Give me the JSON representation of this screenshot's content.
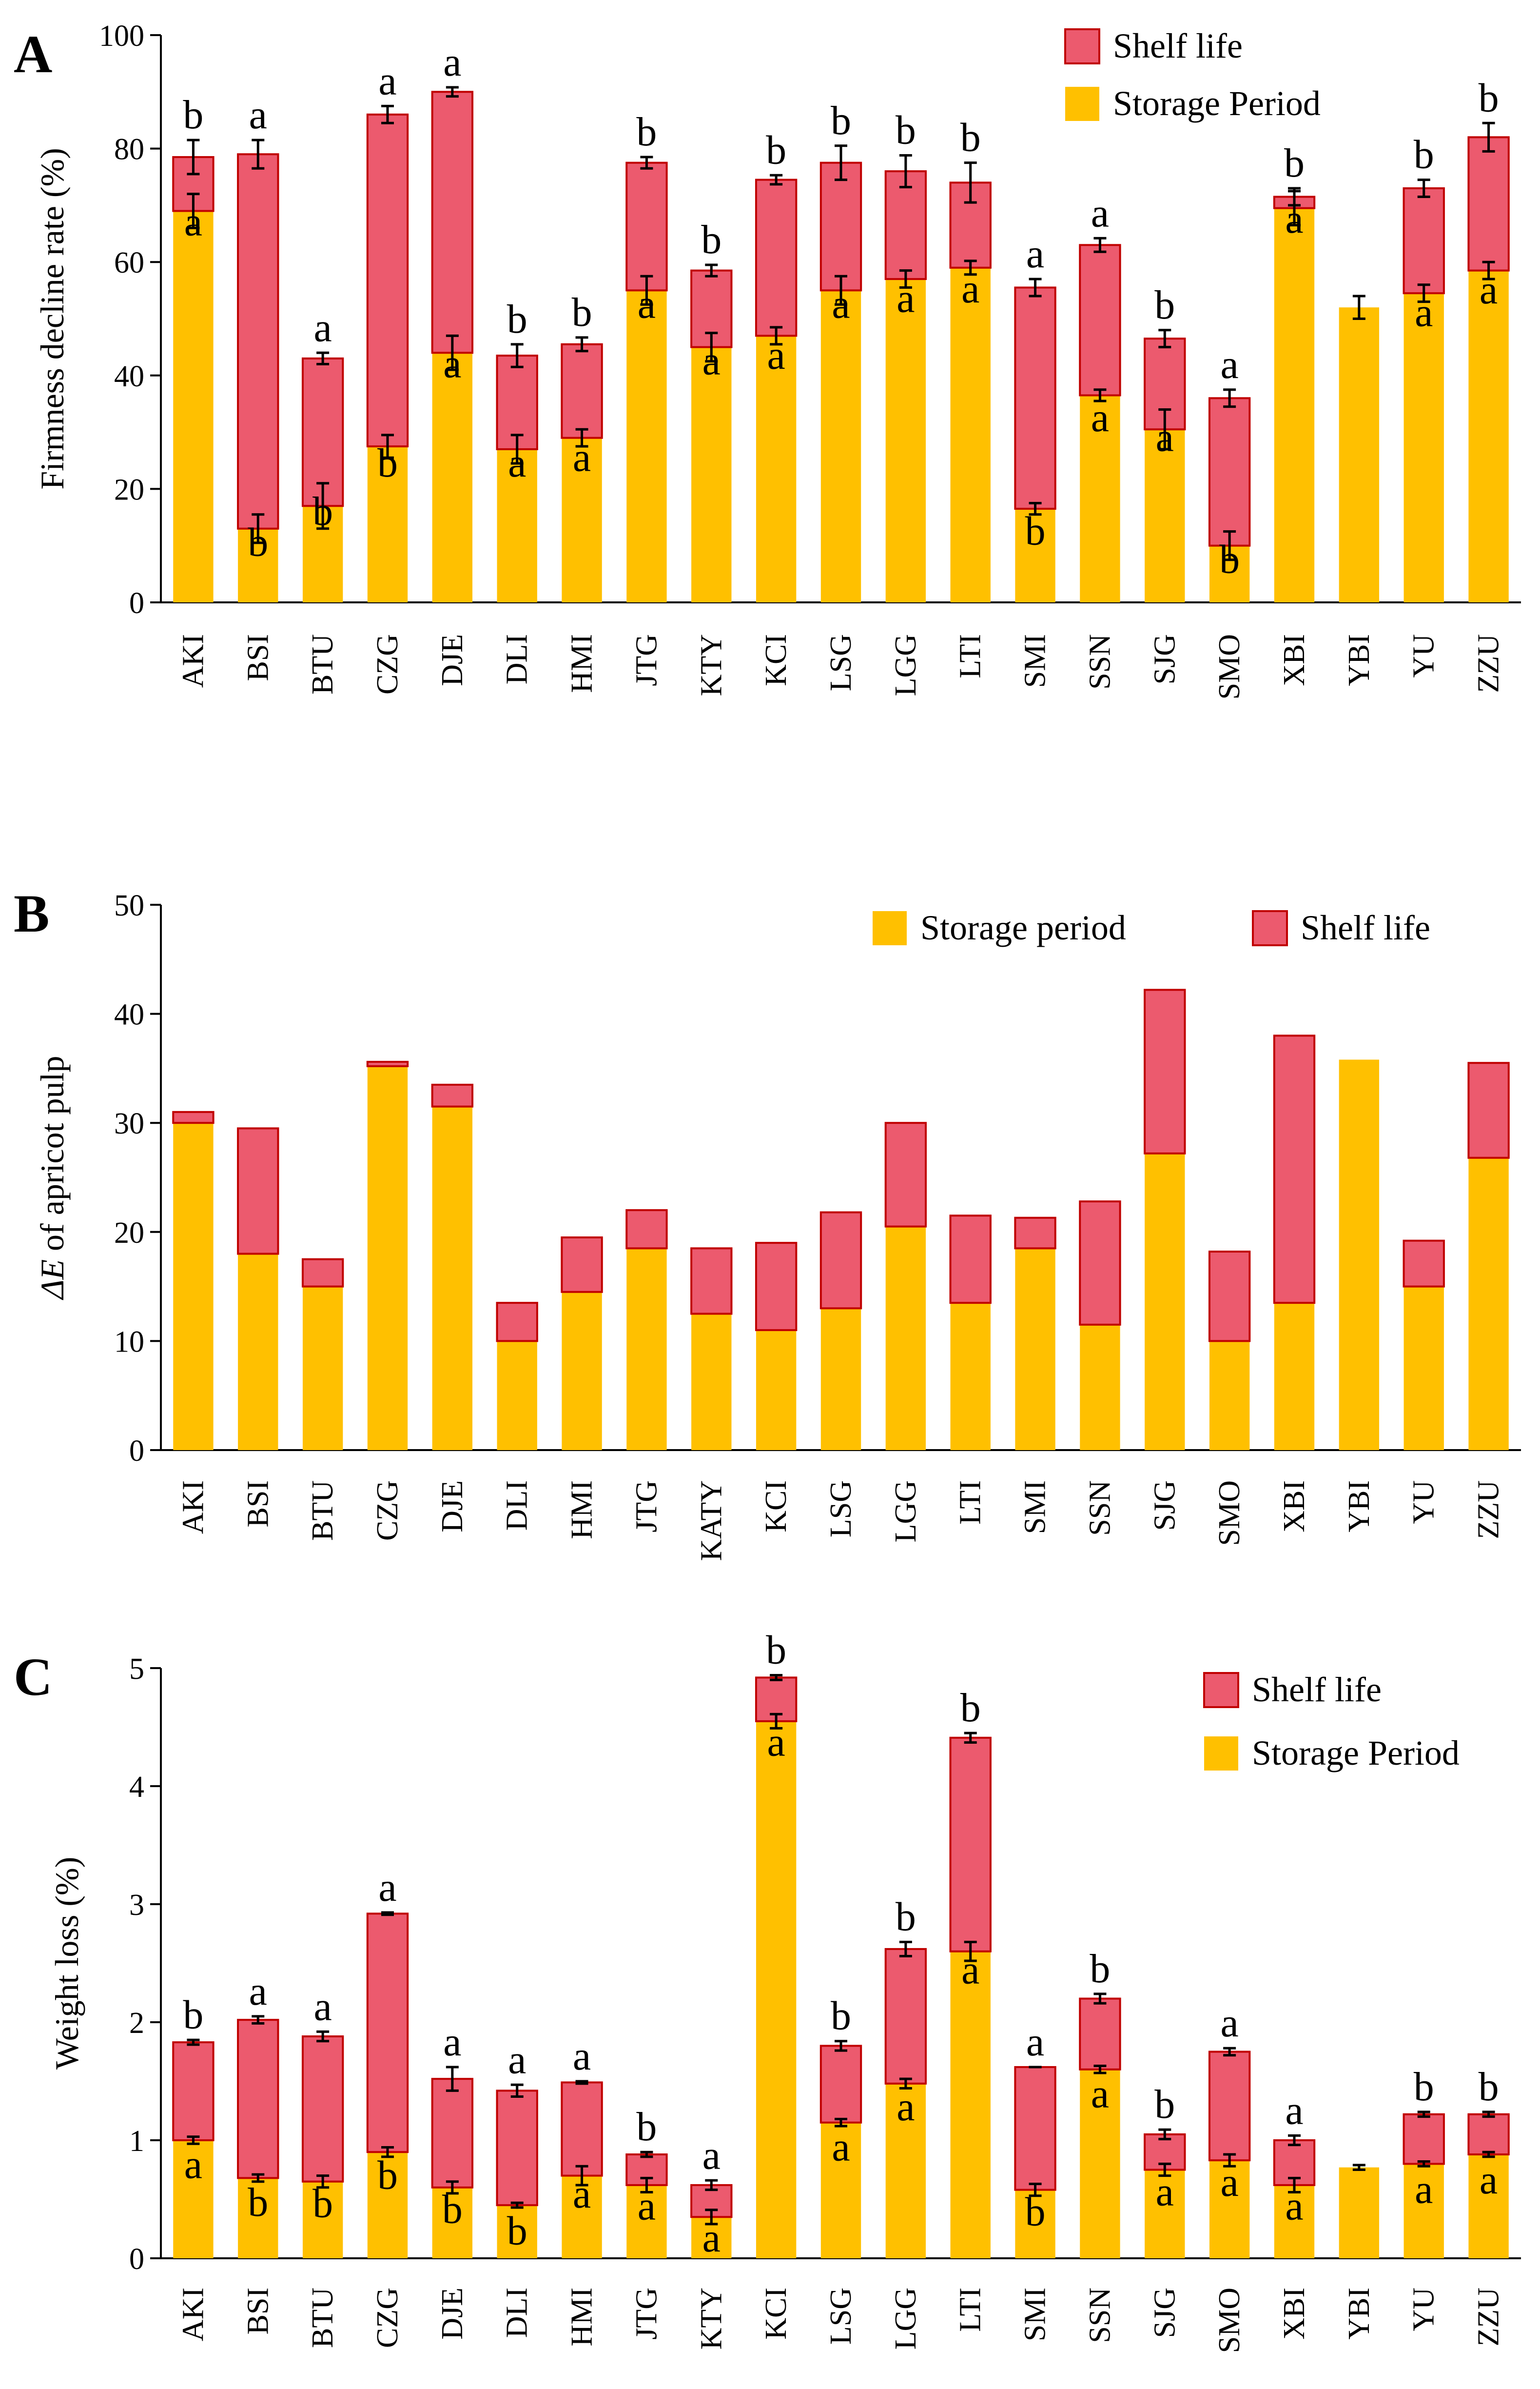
{
  "colors": {
    "storage": "#FFC000",
    "shelf": "#EC5A6E",
    "shelf_edge": "#C00000",
    "error": "#000000"
  },
  "chart_data": [
    {
      "type": "bar",
      "panel": "A",
      "stacked": true,
      "ylabel": "Firmness decline rate (%)",
      "ylim": [
        0,
        100
      ],
      "yticks": [
        0,
        20,
        40,
        60,
        80,
        100
      ],
      "legend": [
        "Shelf life",
        "Storage Period"
      ],
      "legend_order": [
        "shelf",
        "storage"
      ],
      "categories": [
        "AKI",
        "BSI",
        "BTU",
        "CZG",
        "DJE",
        "DLI",
        "HMI",
        "JTG",
        "KTY",
        "KCI",
        "LSG",
        "LGG",
        "LTI",
        "SMI",
        "SSN",
        "SJG",
        "SMO",
        "XBI",
        "YBI",
        "YU",
        "ZZU"
      ],
      "storage": [
        69,
        13,
        17,
        27.5,
        44,
        27,
        29,
        55,
        45,
        47,
        55,
        57,
        59,
        16.5,
        36.5,
        30.5,
        10,
        69.5,
        52,
        54.5,
        58.5
      ],
      "total": [
        78.5,
        79,
        43,
        86,
        90,
        43.5,
        45.5,
        77.5,
        58.5,
        74.5,
        77.5,
        76,
        74,
        55.5,
        63,
        46.5,
        36,
        71.5,
        null,
        73,
        82
      ],
      "storage_err": [
        3,
        2.5,
        4,
        2,
        3,
        2.5,
        1.5,
        2.5,
        2.5,
        1.5,
        2.5,
        1.5,
        1.2,
        1,
        1,
        3.5,
        2.5,
        3,
        2,
        1.5,
        1.5
      ],
      "total_err": [
        3,
        2.5,
        1,
        1.5,
        0.8,
        2,
        1.2,
        1,
        1,
        0.8,
        3,
        2.8,
        3.5,
        1.5,
        1.2,
        1.5,
        1.5,
        1.5,
        null,
        1.5,
        2.5
      ],
      "storage_letter": [
        "a",
        "b",
        "b",
        "b",
        "a",
        "a",
        "a",
        "a",
        "a",
        "a",
        "a",
        "a",
        "a",
        "b",
        "a",
        "a",
        "b",
        "a",
        "",
        "a",
        "a"
      ],
      "total_letter": [
        "b",
        "a",
        "a",
        "a",
        "a",
        "b",
        "b",
        "b",
        "b",
        "b",
        "b",
        "b",
        "b",
        "a",
        "a",
        "b",
        "a",
        "b",
        "",
        "b",
        "b"
      ]
    },
    {
      "type": "bar",
      "panel": "B",
      "stacked": true,
      "ylabel_prefix": "ΔE",
      "ylabel_suffix": " of apricot pulp",
      "ylim": [
        0,
        50
      ],
      "yticks": [
        0,
        10,
        20,
        30,
        40,
        50
      ],
      "legend": [
        "Storage period",
        "Shelf life"
      ],
      "legend_order": [
        "storage",
        "shelf"
      ],
      "categories": [
        "AKI",
        "BSI",
        "BTU",
        "CZG",
        "DJE",
        "DLI",
        "HMI",
        "JTG",
        "KATY",
        "KCI",
        "LSG",
        "LGG",
        "LTI",
        "SMI",
        "SSN",
        "SJG",
        "SMO",
        "XBI",
        "YBI",
        "YU",
        "ZZU"
      ],
      "storage": [
        30,
        18,
        15,
        35.2,
        31.5,
        10,
        14.5,
        18.5,
        12.5,
        11,
        13,
        20.5,
        13.5,
        18.5,
        11.5,
        27.2,
        10,
        13.5,
        35.8,
        15,
        26.8
      ],
      "total": [
        31,
        29.5,
        17.5,
        35.6,
        33.5,
        13.5,
        19.5,
        22,
        18.5,
        19,
        21.8,
        30,
        21.5,
        21.3,
        22.8,
        42.2,
        18.2,
        38,
        null,
        19.2,
        35.5
      ]
    },
    {
      "type": "bar",
      "panel": "C",
      "stacked": true,
      "ylabel": "Weight loss (%)",
      "ylim": [
        0,
        5
      ],
      "yticks": [
        0,
        1,
        2,
        3,
        4,
        5
      ],
      "legend": [
        "Shelf life",
        "Storage Period"
      ],
      "legend_order": [
        "shelf",
        "storage"
      ],
      "categories": [
        "AKI",
        "BSI",
        "BTU",
        "CZG",
        "DJE",
        "DLI",
        "HMI",
        "JTG",
        "KTY",
        "KCI",
        "LSG",
        "LGG",
        "LTI",
        "SMI",
        "SSN",
        "SJG",
        "SMO",
        "XBI",
        "YBI",
        "YU",
        "ZZU"
      ],
      "storage": [
        1.0,
        0.68,
        0.65,
        0.9,
        0.6,
        0.45,
        0.7,
        0.62,
        0.35,
        4.55,
        1.15,
        1.48,
        2.6,
        0.58,
        1.6,
        0.75,
        0.83,
        0.62,
        0.77,
        0.8,
        0.88
      ],
      "total": [
        1.83,
        2.02,
        1.88,
        2.92,
        1.52,
        1.42,
        1.49,
        0.88,
        0.62,
        4.92,
        1.8,
        2.62,
        4.41,
        1.62,
        2.2,
        1.05,
        1.75,
        1.0,
        null,
        1.22,
        1.22
      ],
      "storage_err": [
        0.03,
        0.03,
        0.05,
        0.04,
        0.05,
        0.02,
        0.08,
        0.06,
        0.06,
        0.06,
        0.03,
        0.04,
        0.08,
        0.05,
        0.03,
        0.05,
        0.05,
        0.06,
        0.02,
        0.02,
        0.02
      ],
      "total_err": [
        0.02,
        0.03,
        0.04,
        0.01,
        0.1,
        0.05,
        0.01,
        0.02,
        0.04,
        0.02,
        0.04,
        0.06,
        0.04,
        0,
        0.04,
        0.04,
        0.03,
        0.04,
        null,
        0.02,
        0.02
      ],
      "storage_letter": [
        "a",
        "b",
        "b",
        "b",
        "b",
        "b",
        "a",
        "a",
        "a",
        "a",
        "a",
        "a",
        "a",
        "b",
        "a",
        "a",
        "a",
        "a",
        "",
        "a",
        "a"
      ],
      "total_letter": [
        "b",
        "a",
        "a",
        "a",
        "a",
        "a",
        "a",
        "b",
        "a",
        "b",
        "b",
        "b",
        "b",
        "a",
        "b",
        "b",
        "a",
        "a",
        "",
        "b",
        "b"
      ]
    }
  ]
}
